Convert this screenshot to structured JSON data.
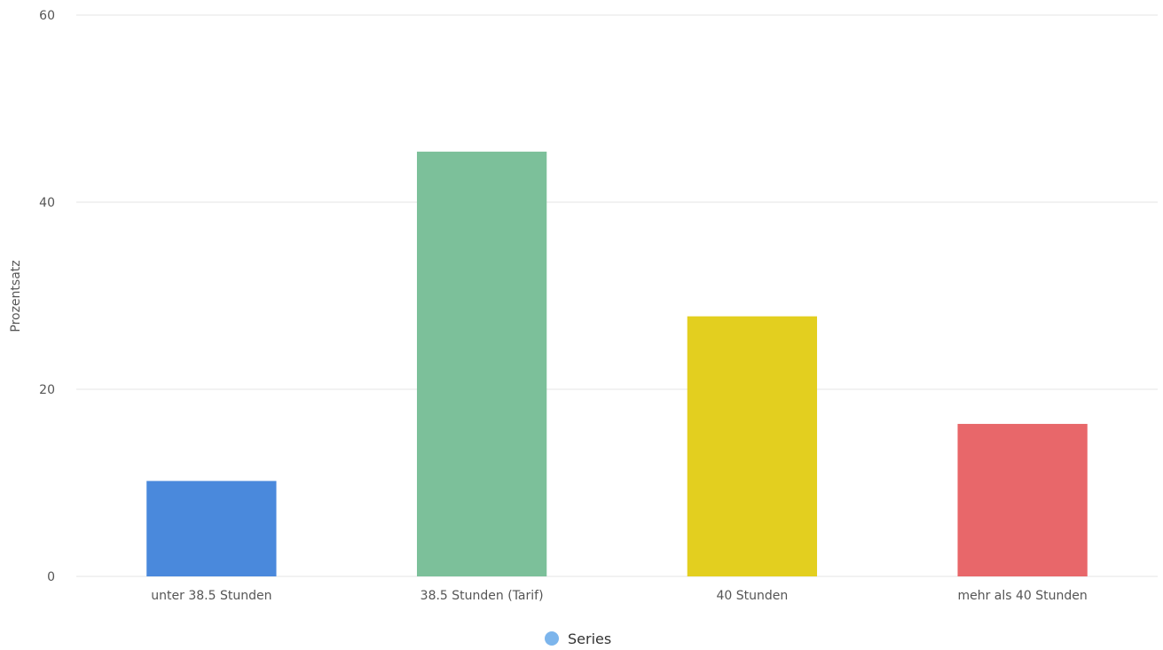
{
  "chart_data": {
    "type": "bar",
    "categories": [
      "unter 38.5 Stunden",
      "38.5 Stunden (Tarif)",
      "40 Stunden",
      "mehr als 40 Stunden"
    ],
    "series": [
      {
        "name": "Series",
        "values": [
          10.2,
          45.4,
          27.8,
          16.3
        ],
        "colors": [
          "#4a89dc",
          "#7cc09a",
          "#e3cf1f",
          "#e8676a"
        ]
      }
    ],
    "ylabel": "Prozentsatz",
    "ylim": [
      0,
      60
    ],
    "yticks": [
      0,
      20,
      40,
      60
    ],
    "grid": true,
    "legend": {
      "placement": "bottom-center",
      "marker_color": "#7cb5ec"
    }
  }
}
